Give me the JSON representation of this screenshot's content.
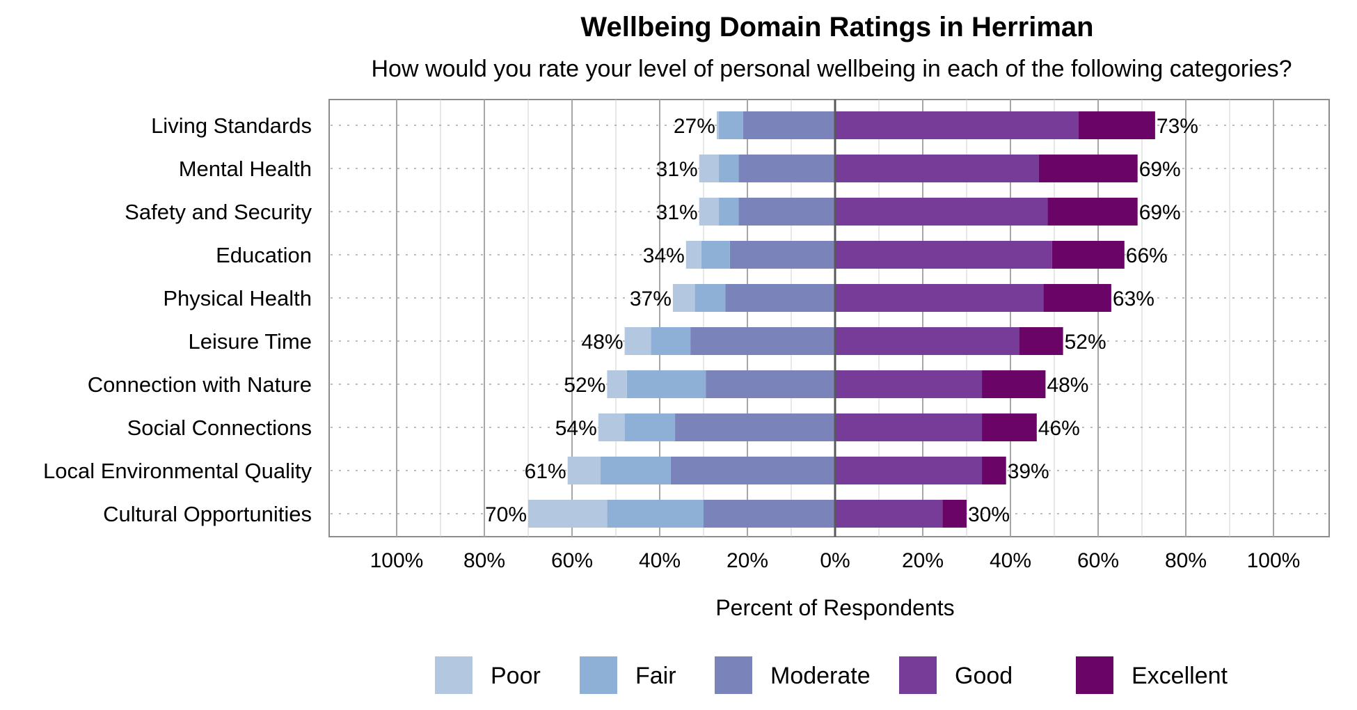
{
  "chart_data": {
    "type": "bar",
    "orientation": "horizontal",
    "stacking": "diverging",
    "title": "Wellbeing Domain Ratings in Herriman",
    "subtitle": "How would you rate your level of personal wellbeing in each of the following categories?",
    "xlabel": "Percent of Respondents",
    "xlim": [
      -100,
      100
    ],
    "x_ticks": [
      -100,
      -80,
      -60,
      -40,
      -20,
      0,
      20,
      40,
      60,
      80,
      100
    ],
    "x_tick_labels": [
      "100%",
      "80%",
      "60%",
      "40%",
      "20%",
      "0%",
      "20%",
      "40%",
      "60%",
      "80%",
      "100%"
    ],
    "grid": true,
    "legend_position": "bottom",
    "categories": [
      "Living Standards",
      "Mental Health",
      "Safety and Security",
      "Education",
      "Physical Health",
      "Leisure Time",
      "Connection with Nature",
      "Social Connections",
      "Local Environmental Quality",
      "Cultural Opportunities"
    ],
    "series": [
      {
        "name": "Poor",
        "side": "negative",
        "color": "#b4c7e1",
        "values": [
          0.5,
          4.5,
          4.5,
          3.5,
          5,
          6,
          4.5,
          6,
          7.5,
          18
        ]
      },
      {
        "name": "Fair",
        "side": "negative",
        "color": "#8eb0d6",
        "values": [
          5.5,
          4.5,
          4.5,
          6.5,
          7,
          9,
          18,
          11.5,
          16,
          22
        ]
      },
      {
        "name": "Moderate",
        "side": "negative",
        "color": "#7a84bb",
        "values": [
          21,
          22,
          22,
          24,
          25,
          33,
          29.5,
          36.5,
          37.5,
          30
        ]
      },
      {
        "name": "Good",
        "side": "positive",
        "color": "#773c98",
        "values": [
          55.5,
          46.5,
          48.5,
          49.5,
          47.5,
          42,
          33.5,
          33.5,
          33.5,
          24.5
        ]
      },
      {
        "name": "Excellent",
        "side": "positive",
        "color": "#6a0466",
        "values": [
          17.5,
          22.5,
          20.5,
          16.5,
          15.5,
          10,
          14.5,
          12.5,
          5.5,
          5.5
        ]
      }
    ],
    "negative_totals": [
      "27%",
      "31%",
      "31%",
      "34%",
      "37%",
      "48%",
      "52%",
      "54%",
      "61%",
      "70%"
    ],
    "positive_totals": [
      "73%",
      "69%",
      "69%",
      "66%",
      "63%",
      "52%",
      "48%",
      "46%",
      "39%",
      "30%"
    ]
  }
}
